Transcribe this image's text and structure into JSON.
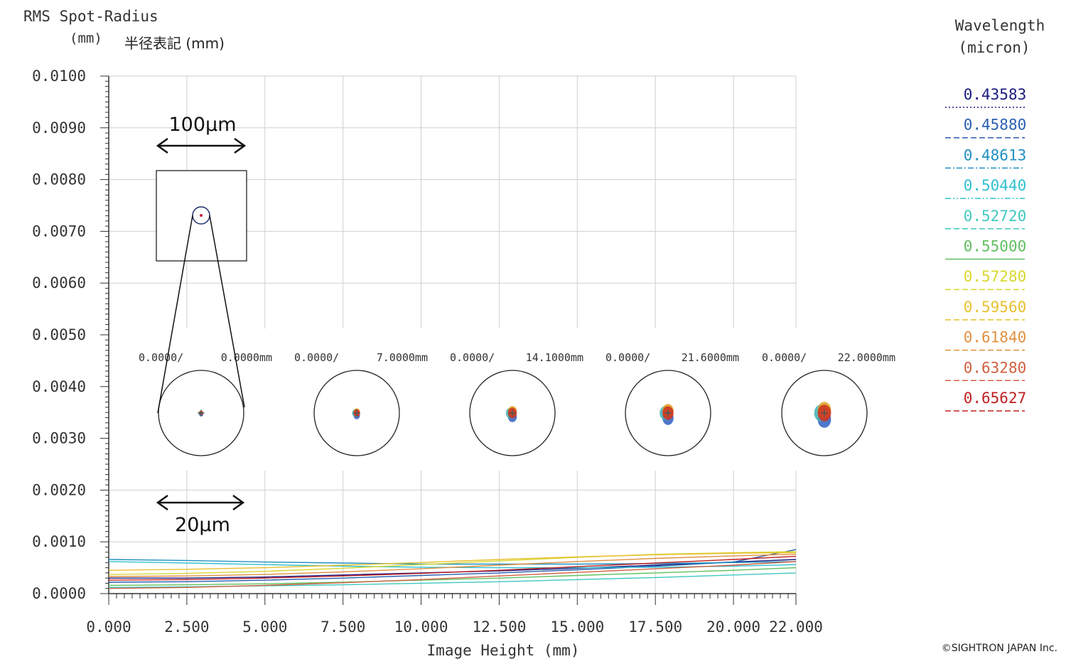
{
  "chart_data": {
    "type": "line",
    "ylabel_line1": "RMS Spot-Radius",
    "ylabel_line2": "(mm)",
    "ylabel_note": "半径表記 (mm)",
    "xlabel": "Image Height (mm)",
    "legend_title_line1": "Wavelength",
    "legend_title_line2": "(micron)",
    "legend_position": "right",
    "grid": true,
    "xlim": [
      0,
      22
    ],
    "ylim": [
      0,
      0.01
    ],
    "x_tick_labels": [
      "0.000",
      "2.500",
      "5.000",
      "7.500",
      "10.000",
      "12.500",
      "15.000",
      "17.500",
      "20.000",
      "22.000"
    ],
    "y_tick_labels": [
      "0.0000",
      "0.0010",
      "0.0020",
      "0.0030",
      "0.0040",
      "0.0050",
      "0.0060",
      "0.0070",
      "0.0080",
      "0.0090",
      "0.0100"
    ],
    "x": [
      0,
      2.5,
      5,
      7.5,
      10,
      12.5,
      15,
      17.5,
      20,
      22
    ],
    "series": [
      {
        "name": "0.43583",
        "color": "#1a1a80",
        "dash": "dotted",
        "values": [
          0.0003,
          0.0003,
          0.00032,
          0.00036,
          0.0004,
          0.00044,
          0.00049,
          0.00055,
          0.00061,
          0.00066
        ]
      },
      {
        "name": "0.45880",
        "color": "#2a5fb0",
        "dash": "dashed",
        "values": [
          0.00022,
          0.00023,
          0.00026,
          0.0003,
          0.00035,
          0.0004,
          0.00046,
          0.00053,
          0.00061,
          0.00085
        ]
      },
      {
        "name": "0.48613",
        "color": "#2090c0",
        "dash": "dashdot",
        "values": [
          0.00066,
          0.00064,
          0.00061,
          0.00059,
          0.00057,
          0.00057,
          0.00057,
          0.00058,
          0.0006,
          0.00062
        ]
      },
      {
        "name": "0.50440",
        "color": "#30c0d0",
        "dash": "dashdotdot",
        "values": [
          0.00062,
          0.00059,
          0.00056,
          0.00053,
          0.00051,
          0.0005,
          0.0005,
          0.00051,
          0.00053,
          0.00056
        ]
      },
      {
        "name": "0.52720",
        "color": "#40c8c0",
        "dash": "dashed",
        "values": [
          0.00012,
          0.00013,
          0.00015,
          0.00017,
          0.0002,
          0.00023,
          0.00027,
          0.00031,
          0.00036,
          0.0004
        ]
      },
      {
        "name": "0.55000",
        "color": "#60c060",
        "dash": "solid",
        "values": [
          0.00016,
          0.00017,
          0.00019,
          0.00022,
          0.00026,
          0.0003,
          0.00035,
          0.0004,
          0.00045,
          0.0005
        ]
      },
      {
        "name": "0.57280",
        "color": "#d8d830",
        "dash": "dashed",
        "values": [
          0.00037,
          0.00039,
          0.00043,
          0.00049,
          0.00056,
          0.00063,
          0.0007,
          0.00076,
          0.00079,
          0.00081
        ]
      },
      {
        "name": "0.59560",
        "color": "#e8c030",
        "dash": "dashed",
        "values": [
          0.00045,
          0.00047,
          0.0005,
          0.00055,
          0.0006,
          0.00066,
          0.00071,
          0.00075,
          0.00078,
          0.00079
        ]
      },
      {
        "name": "0.61840",
        "color": "#e09040",
        "dash": "dashed",
        "values": [
          0.00033,
          0.00034,
          0.00037,
          0.00042,
          0.00048,
          0.00055,
          0.00062,
          0.00068,
          0.00073,
          0.00076
        ]
      },
      {
        "name": "0.63280",
        "color": "#d06040",
        "dash": "dashed",
        "values": [
          0.0001,
          0.00012,
          0.00016,
          0.00021,
          0.00027,
          0.00034,
          0.00041,
          0.00048,
          0.00055,
          0.00062
        ]
      },
      {
        "name": "0.65627",
        "color": "#c02020",
        "dash": "dashed",
        "values": [
          0.00026,
          0.00027,
          0.0003,
          0.00034,
          0.00039,
          0.00045,
          0.00052,
          0.00059,
          0.00066,
          0.00072
        ]
      }
    ],
    "spot_labels": [
      {
        "left": "0.0000/",
        "right": "0.0000mm"
      },
      {
        "left": "0.0000/",
        "right": "7.0000mm"
      },
      {
        "left": "0.0000/",
        "right": "14.1000mm"
      },
      {
        "left": "0.0000/",
        "right": "21.6000mm"
      },
      {
        "left": "0.0000/",
        "right": "22.0000mm"
      }
    ],
    "annotations": {
      "scale_top": "100μm",
      "scale_bottom": "20μm"
    },
    "copyright": "©SIGHTRON JAPAN Inc."
  }
}
